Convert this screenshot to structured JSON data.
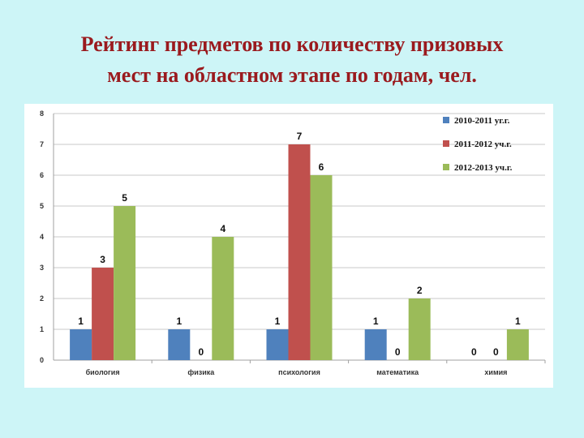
{
  "title": {
    "line1": "Рейтинг предметов по количеству призовых",
    "line2": "мест на областном этапе по годам, чел."
  },
  "chart_data": {
    "type": "bar",
    "title": "",
    "categories": [
      "биология",
      "физика",
      "психология",
      "математика",
      "химия"
    ],
    "series": [
      {
        "name": "2010-2011 уг.г.",
        "color": "#4f81bd",
        "values": [
          1,
          1,
          1,
          1,
          0
        ]
      },
      {
        "name": "2011-2012 уч.г.",
        "color": "#c0504d",
        "values": [
          3,
          0,
          7,
          0,
          0
        ]
      },
      {
        "name": "2012-2013 уч.г.",
        "color": "#9bbb59",
        "values": [
          5,
          4,
          6,
          2,
          1
        ]
      }
    ],
    "yticks": [
      0,
      1,
      2,
      3,
      4,
      5,
      6,
      7,
      8
    ],
    "ylim": [
      0,
      8
    ],
    "grid": true,
    "legend": "top-right",
    "data_labels": true
  }
}
